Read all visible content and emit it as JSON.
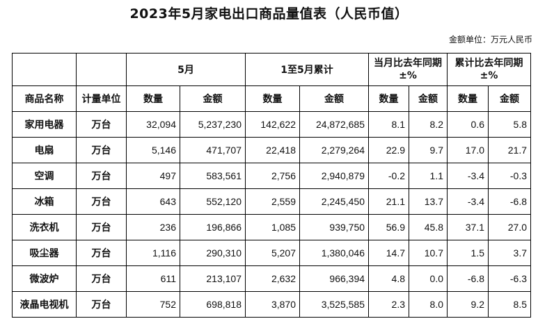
{
  "title": "2023年5月家电出口商品量值表（人民币值）",
  "unit_note": "金额单位：万元人民币",
  "table": {
    "groups": {
      "may": "5月",
      "cumulative": "1至5月累计",
      "yoy_month_line1": "当月比去年同期",
      "yoy_month_line2": "±%",
      "yoy_cum_line1": "累计比去年同期",
      "yoy_cum_line2": "±%"
    },
    "columns": {
      "name": "商品名称",
      "unit": "计量单位",
      "may_qty": "数量",
      "may_amt": "金额",
      "cum_qty": "数量",
      "cum_amt": "金额",
      "yoy_m_qty": "数量",
      "yoy_m_amt": "金额",
      "yoy_c_qty": "数量",
      "yoy_c_amt": "金额"
    },
    "rows": [
      [
        "家用电器",
        "万台",
        "32,094",
        "5,237,230",
        "142,622",
        "24,872,685",
        "8.1",
        "8.2",
        "0.6",
        "5.8"
      ],
      [
        "电扇",
        "万台",
        "5,146",
        "471,707",
        "22,418",
        "2,279,264",
        "22.9",
        "9.7",
        "17.0",
        "21.7"
      ],
      [
        "空调",
        "万台",
        "497",
        "583,561",
        "2,756",
        "2,940,879",
        "-0.2",
        "1.1",
        "-3.4",
        "-0.3"
      ],
      [
        "冰箱",
        "万台",
        "643",
        "552,120",
        "2,559",
        "2,245,450",
        "21.1",
        "13.7",
        "-3.4",
        "-6.8"
      ],
      [
        "洗衣机",
        "万台",
        "236",
        "196,866",
        "1,085",
        "939,750",
        "56.9",
        "45.8",
        "37.1",
        "27.0"
      ],
      [
        "吸尘器",
        "万台",
        "1,116",
        "290,310",
        "5,207",
        "1,380,046",
        "14.7",
        "10.7",
        "1.5",
        "3.7"
      ],
      [
        "微波炉",
        "万台",
        "611",
        "213,107",
        "2,632",
        "966,394",
        "4.8",
        "0.0",
        "-6.8",
        "-6.3"
      ],
      [
        "液晶电视机",
        "万台",
        "752",
        "698,818",
        "3,870",
        "3,525,585",
        "2.3",
        "8.0",
        "9.2",
        "8.5"
      ]
    ]
  }
}
